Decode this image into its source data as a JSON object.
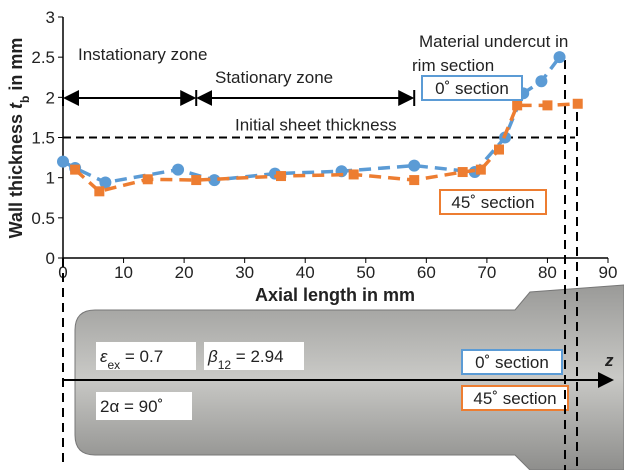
{
  "chart_data": {
    "type": "line",
    "x_label": "Axial length in mm",
    "y_label": [
      "Wall thickness ",
      "t",
      "b",
      " in mm"
    ],
    "xlim": [
      0,
      90
    ],
    "xticks": [
      0,
      10,
      20,
      30,
      40,
      50,
      60,
      70,
      80,
      90
    ],
    "ylim": [
      0,
      3
    ],
    "yticks": [
      0,
      0.5,
      1,
      1.5,
      2,
      2.5,
      3
    ],
    "series": [
      {
        "name": "0˚ section",
        "color": "#5b9bd5",
        "marker": "circle",
        "x": [
          0,
          2,
          7,
          19,
          25,
          35,
          46,
          58,
          68,
          73,
          76,
          79,
          82
        ],
        "values": [
          1.2,
          1.12,
          0.94,
          1.1,
          0.97,
          1.05,
          1.08,
          1.15,
          1.07,
          1.5,
          2.05,
          2.2,
          2.5
        ]
      },
      {
        "name": "45˚ section",
        "color": "#ed7d31",
        "marker": "square",
        "x": [
          2,
          6,
          14,
          22,
          36,
          48,
          58,
          66,
          69,
          72,
          75,
          80,
          85
        ],
        "values": [
          1.1,
          0.83,
          0.98,
          0.97,
          1.02,
          1.04,
          0.97,
          1.07,
          1.1,
          1.35,
          1.9,
          1.9,
          1.92
        ]
      }
    ],
    "threshold": {
      "value": 1.5,
      "label": "Initial sheet thickness"
    },
    "zones": [
      {
        "label": "Instationary zone",
        "from": 0,
        "to": 22
      },
      {
        "label": "Stationary zone",
        "from": 22,
        "to": 58
      }
    ],
    "annotation": [
      "Material undercut in",
      "rim section"
    ]
  },
  "photo": {
    "strain": [
      "ε",
      "ex",
      " = 0.7"
    ],
    "ratio": [
      "β",
      "12",
      " = 2.94"
    ],
    "angle": "2α = 90˚",
    "axis": "z"
  }
}
